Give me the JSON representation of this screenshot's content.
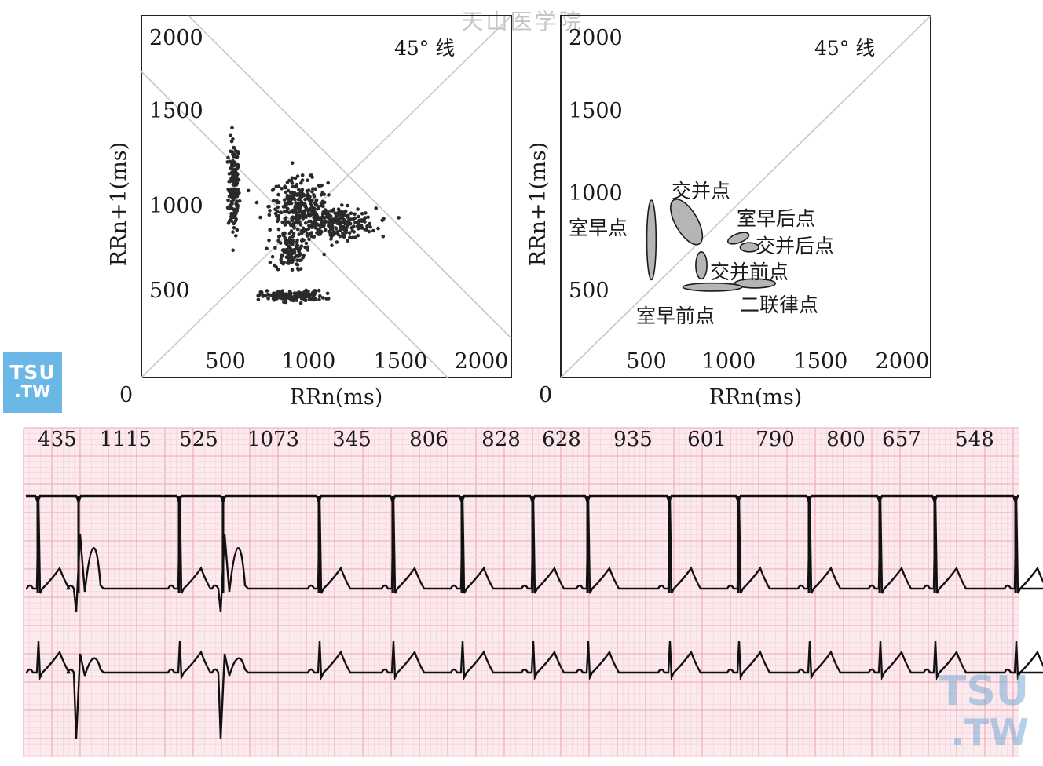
{
  "watermark_top": "天山医学院",
  "watermark_badge": {
    "line1": "TSU",
    "line2": ".TW"
  },
  "watermark_bottom": {
    "line1": "TSU",
    "line2": ".TW"
  },
  "chart_data": [
    {
      "type": "scatter",
      "xlabel": "RRn(ms)",
      "ylabel": "RRn+1(ms)",
      "origin_label": "0",
      "xlim": [
        0,
        2000
      ],
      "ylim": [
        0,
        2000
      ],
      "x_ticks": [
        "500",
        "1000",
        "1500",
        "2000"
      ],
      "y_ticks": [
        "2000",
        "1500",
        "1000",
        "500"
      ],
      "annotation": "45° 线",
      "clusters": [
        {
          "cx": 500,
          "cy": 1050,
          "sx": 25,
          "sy": 220,
          "n": 160
        },
        {
          "cx": 850,
          "cy": 950,
          "sx": 130,
          "sy": 120,
          "n": 260
        },
        {
          "cx": 1050,
          "cy": 850,
          "sx": 180,
          "sy": 70,
          "n": 260
        },
        {
          "cx": 800,
          "cy": 700,
          "sx": 70,
          "sy": 90,
          "n": 110
        },
        {
          "cx": 820,
          "cy": 450,
          "sx": 140,
          "sy": 25,
          "n": 150
        }
      ]
    },
    {
      "type": "scatter",
      "xlabel": "RRn(ms)",
      "ylabel": "RRn+1(ms)",
      "origin_label": "0",
      "xlim": [
        0,
        2000
      ],
      "ylim": [
        0,
        2000
      ],
      "x_ticks": [
        "500",
        "1000",
        "1500",
        "2000"
      ],
      "y_ticks": [
        "2000",
        "1500",
        "1000",
        "500"
      ],
      "annotation": "45° 线",
      "regions": [
        {
          "label": "室早点",
          "cx": 490,
          "cy": 760,
          "rx": 25,
          "ry": 220,
          "rot": 0
        },
        {
          "label": "交并点",
          "cx": 680,
          "cy": 860,
          "rx": 60,
          "ry": 140,
          "rot": -30
        },
        {
          "label": "室早后点",
          "cx": 960,
          "cy": 770,
          "rx": 60,
          "ry": 25,
          "rot": -20
        },
        {
          "label": "交并后点",
          "cx": 1020,
          "cy": 720,
          "rx": 50,
          "ry": 25,
          "rot": 0
        },
        {
          "label": "交并前点",
          "cx": 760,
          "cy": 620,
          "rx": 30,
          "ry": 75,
          "rot": 0
        },
        {
          "label": "二联律点",
          "cx": 1050,
          "cy": 520,
          "rx": 110,
          "ry": 25,
          "rot": 0
        },
        {
          "label": "室早前点",
          "cx": 820,
          "cy": 500,
          "rx": 160,
          "ry": 22,
          "rot": 0
        }
      ]
    },
    {
      "type": "ecg",
      "rr_intervals": [
        "435",
        "1115",
        "525",
        "1073",
        "345",
        "806",
        "828",
        "628",
        "935",
        "601",
        "790",
        "800",
        "657",
        "548"
      ]
    }
  ]
}
